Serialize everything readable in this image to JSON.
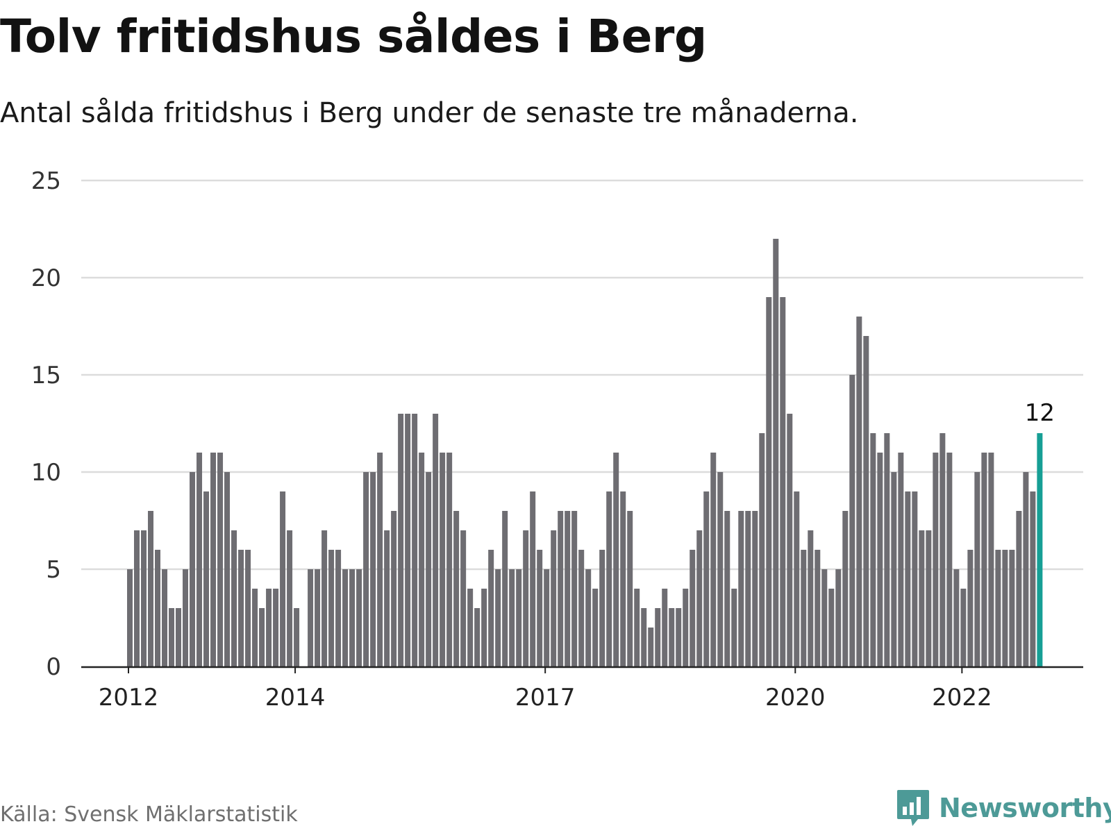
{
  "title": "Tolv fritidshus såldes i Berg",
  "subtitle": "Antal sålda fritidshus i Berg under de senaste tre månaderna.",
  "source": "Källa: Svensk Mäklarstatistik",
  "brand": {
    "name": "Newsworthy",
    "icon": "bar-chart-speech-bubble-icon",
    "color": "#4d9a97"
  },
  "colors": {
    "bar": "#6e6d72",
    "highlight": "#169f95",
    "grid": "#dcdcdc",
    "axis": "#222222"
  },
  "chart_data": {
    "type": "bar",
    "title": "Tolv fritidshus såldes i Berg",
    "subtitle": "Antal sålda fritidshus i Berg under de senaste tre månaderna.",
    "xlabel": "",
    "ylabel": "",
    "ylim": [
      0,
      25
    ],
    "yticks": [
      0,
      5,
      10,
      15,
      20,
      25
    ],
    "xticks": [
      "2012",
      "2014",
      "2017",
      "2020",
      "2022"
    ],
    "xtick_positions": [
      0,
      24,
      60,
      96,
      120
    ],
    "grid": true,
    "highlight_index": 131,
    "highlight_label": "12",
    "values": [
      5,
      7,
      7,
      8,
      6,
      5,
      3,
      3,
      5,
      10,
      11,
      9,
      11,
      11,
      10,
      7,
      6,
      6,
      4,
      3,
      4,
      4,
      9,
      7,
      3,
      0,
      5,
      5,
      7,
      6,
      6,
      5,
      5,
      5,
      10,
      10,
      11,
      7,
      8,
      13,
      13,
      13,
      11,
      10,
      13,
      11,
      11,
      8,
      7,
      4,
      3,
      4,
      6,
      5,
      8,
      5,
      5,
      7,
      9,
      6,
      5,
      7,
      8,
      8,
      8,
      6,
      5,
      4,
      6,
      9,
      11,
      9,
      8,
      4,
      3,
      2,
      3,
      4,
      3,
      3,
      4,
      6,
      7,
      9,
      11,
      10,
      8,
      4,
      8,
      8,
      8,
      12,
      19,
      22,
      19,
      13,
      9,
      6,
      7,
      6,
      5,
      4,
      5,
      8,
      15,
      18,
      17,
      12,
      11,
      12,
      10,
      11,
      9,
      9,
      7,
      7,
      11,
      12,
      11,
      5,
      4,
      6,
      10,
      11,
      11,
      6,
      6,
      6,
      8,
      10,
      9,
      12
    ]
  }
}
